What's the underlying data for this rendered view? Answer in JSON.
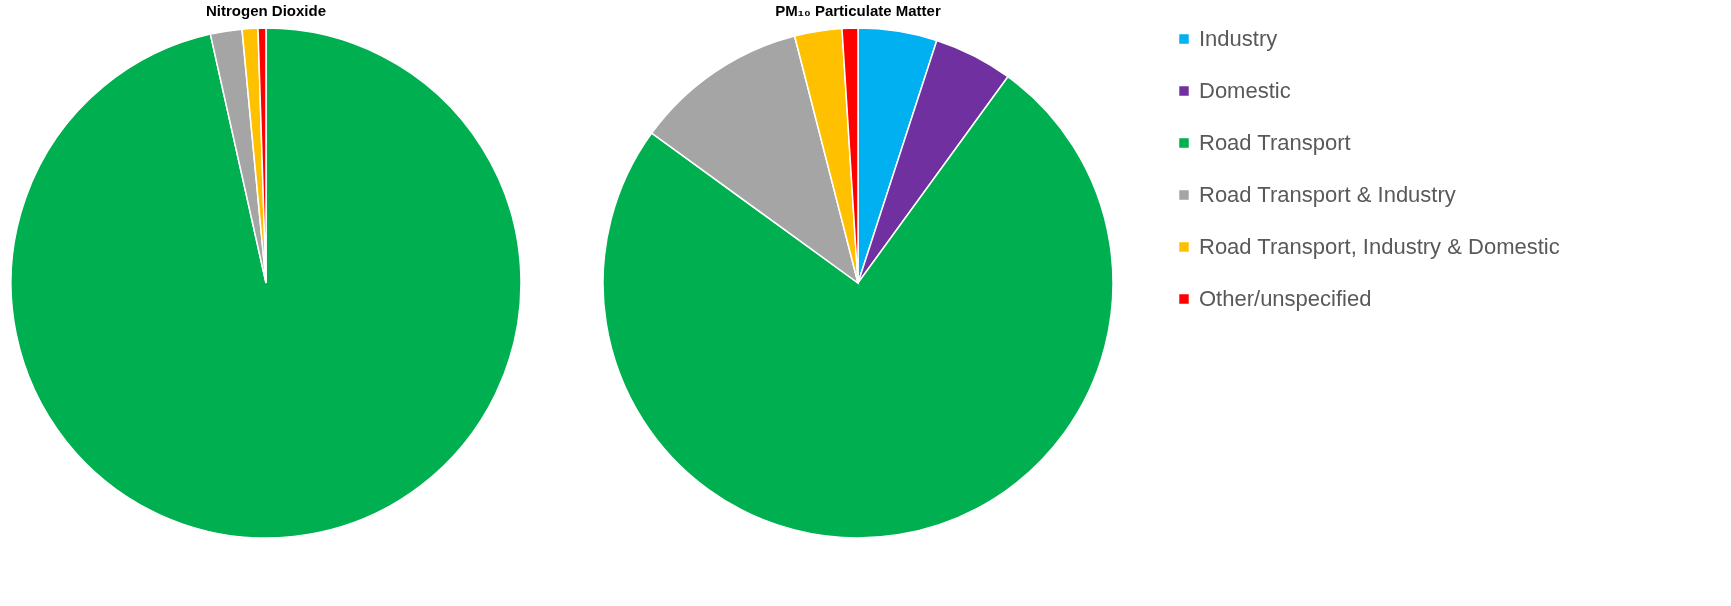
{
  "chart_data": [
    {
      "type": "pie",
      "title": "Nitrogen Dioxide",
      "categories": [
        null,
        null,
        null,
        null,
        null,
        null
      ],
      "values": [
        0,
        0,
        96.5,
        2,
        1,
        0.5
      ],
      "colors": [
        "#00b0f0",
        "#7030a0",
        "#00b050",
        "#a5a5a5",
        "#ffc000",
        "#ff0000"
      ],
      "legend": false
    },
    {
      "type": "pie",
      "title": "PM₁₀ Particulate Matter",
      "categories": [
        "Industry",
        "Domestic",
        "Road Transport",
        "Road Transport & Industry",
        "Road Transport, Industry & Domestic",
        "Other/unspecified"
      ],
      "values": [
        5,
        5,
        75,
        11,
        3,
        1
      ],
      "colors": [
        "#00b0f0",
        "#7030a0",
        "#00b050",
        "#a5a5a5",
        "#ffc000",
        "#ff0000"
      ],
      "legend": "right"
    }
  ]
}
